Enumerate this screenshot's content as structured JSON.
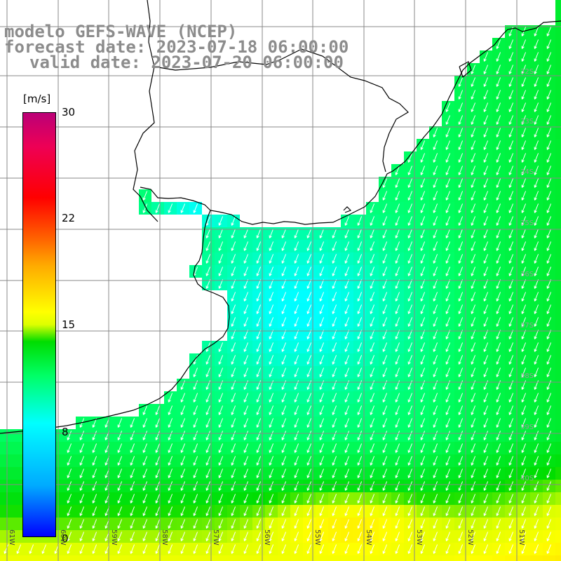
{
  "title": {
    "line1": "modelo GEFS-WAVE (NCEP)",
    "line2": "forecast date: 2023-07-18 06:00:00",
    "line3": "valid date: 2023-07-20 06:00:00"
  },
  "colorbar": {
    "unit": "[m/s]",
    "min": 0,
    "max": 30,
    "tick_labels": [
      "30",
      "22",
      "15",
      "8",
      "0"
    ],
    "tick_values": [
      30,
      22,
      15,
      8,
      0
    ],
    "colors": [
      "#0000ff",
      "#00aaff",
      "#00ffff",
      "#00ff66",
      "#00dd00",
      "#ddff00",
      "#ffff00",
      "#ffaa00",
      "#ff6600",
      "#ff0000",
      "#ee0055",
      "#bb0077"
    ]
  },
  "map": {
    "land_color": "#ffffff",
    "coast_color": "#000000",
    "grid_color": "#888888",
    "arrow_color": "#ffffff",
    "wind_direction": "southwest",
    "lon_labels": [
      "61W",
      "60W",
      "59W",
      "58W",
      "57W",
      "56W",
      "55W",
      "54W",
      "53W",
      "52W",
      "51W"
    ],
    "lat_labels": [
      "32S",
      "33S",
      "34S",
      "35S",
      "36S",
      "37S",
      "38S",
      "39S",
      "40S"
    ]
  }
}
